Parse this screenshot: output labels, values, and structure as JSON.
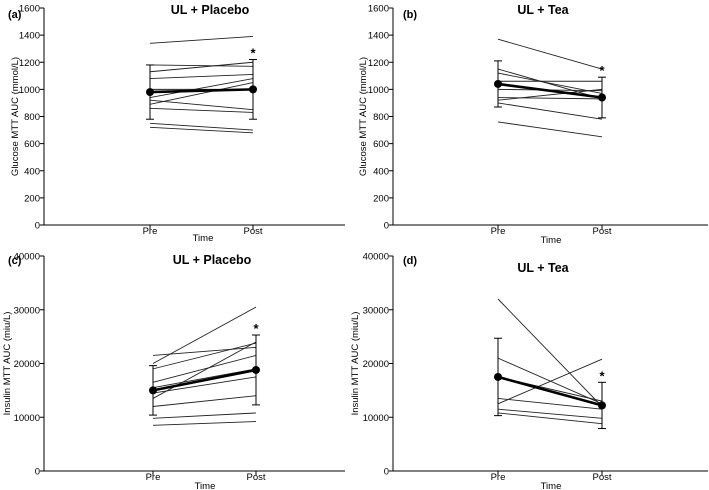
{
  "figure": {
    "x_axis_title": "Time"
  },
  "chart_data": [
    {
      "type": "line",
      "panel_label": "(a)",
      "title": "UL + Placebo",
      "xlabel": "Time",
      "ylabel": "Glucose MTT AUC (mmol/L)",
      "categories": [
        "Pre",
        "Post"
      ],
      "ylim": [
        0,
        1600
      ],
      "yticks": [
        "0",
        "200",
        "400",
        "600",
        "800",
        "1000",
        "1200",
        "1400",
        "1600"
      ],
      "individual_series": [
        [
          1340,
          1390
        ],
        [
          1180,
          1170
        ],
        [
          1130,
          1200
        ],
        [
          1080,
          1110
        ],
        [
          1000,
          1000
        ],
        [
          940,
          1080
        ],
        [
          920,
          850
        ],
        [
          890,
          1050
        ],
        [
          860,
          830
        ],
        [
          750,
          700
        ],
        [
          720,
          680
        ]
      ],
      "mean": [
        980,
        1000
      ],
      "error": [
        200,
        220
      ],
      "annotation": "*"
    },
    {
      "type": "line",
      "panel_label": "(b)",
      "title": "UL + Tea",
      "xlabel": "Time",
      "ylabel": "Glucose MTT AUC (mmol/L)",
      "categories": [
        "Pre",
        "Post"
      ],
      "ylim": [
        0,
        1600
      ],
      "yticks": [
        "0",
        "200",
        "400",
        "600",
        "800",
        "1000",
        "1200",
        "1400",
        "1600"
      ],
      "individual_series": [
        [
          1370,
          1150
        ],
        [
          1150,
          930
        ],
        [
          1120,
          970
        ],
        [
          1060,
          1060
        ],
        [
          1000,
          990
        ],
        [
          940,
          930
        ],
        [
          920,
          1000
        ],
        [
          900,
          780
        ],
        [
          760,
          650
        ]
      ],
      "mean": [
        1040,
        940
      ],
      "error": [
        170,
        150
      ],
      "annotation": "*"
    },
    {
      "type": "line",
      "panel_label": "(c)",
      "title": "UL + Placebo",
      "xlabel": "Time",
      "ylabel": "Insulin MTT AUC (miu/L)",
      "categories": [
        "Pre",
        "Post"
      ],
      "ylim": [
        0,
        40000
      ],
      "yticks": [
        "0",
        "10000",
        "20000",
        "30000",
        "40000"
      ],
      "individual_series": [
        [
          20000,
          30500
        ],
        [
          21500,
          23000
        ],
        [
          19000,
          23800
        ],
        [
          16500,
          21500
        ],
        [
          15500,
          19000
        ],
        [
          14500,
          17500
        ],
        [
          13500,
          24000
        ],
        [
          12000,
          14000
        ],
        [
          9800,
          10800
        ],
        [
          8500,
          9200
        ]
      ],
      "mean": [
        15000,
        18800
      ],
      "error": [
        4600,
        6500
      ],
      "annotation": "*"
    },
    {
      "type": "line",
      "panel_label": "(d)",
      "title": "UL + Tea",
      "xlabel": "Time",
      "ylabel": "Insulin MTT AUC (miu/L)",
      "categories": [
        "Pre",
        "Post"
      ],
      "ylim": [
        0,
        40000
      ],
      "yticks": [
        "0",
        "10000",
        "20000",
        "30000",
        "40000"
      ],
      "individual_series": [
        [
          32000,
          12000
        ],
        [
          21000,
          12500
        ],
        [
          17500,
          13000
        ],
        [
          13500,
          11500
        ],
        [
          12500,
          20800
        ],
        [
          11500,
          9800
        ],
        [
          10800,
          8800
        ]
      ],
      "mean": [
        17500,
        12200
      ],
      "error": [
        7200,
        4300
      ],
      "annotation": "*"
    }
  ]
}
